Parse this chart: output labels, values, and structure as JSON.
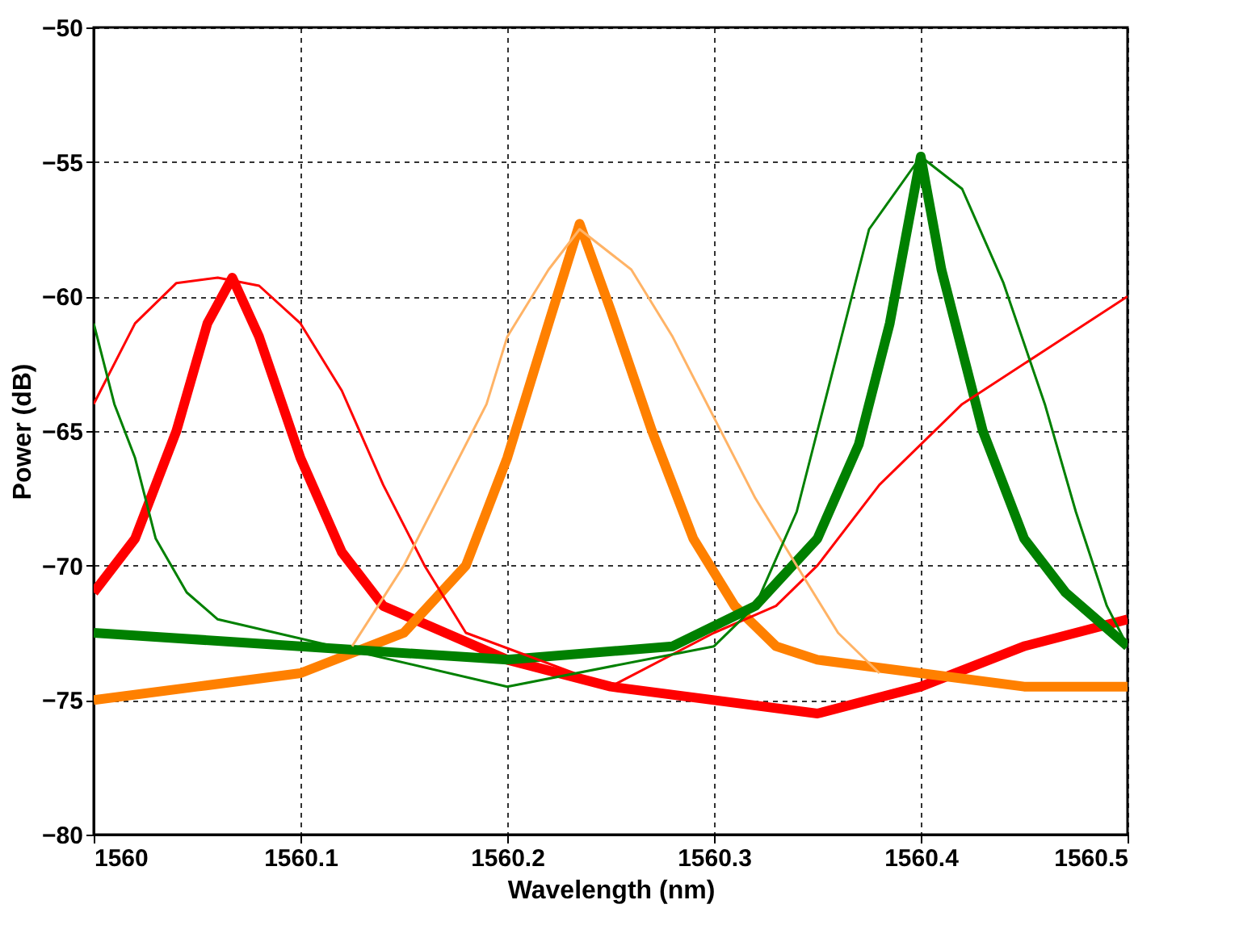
{
  "chart_data": {
    "type": "line",
    "xlabel": "Wavelength (nm)",
    "ylabel": "Power (dB)",
    "xlim": [
      1560,
      1560.5
    ],
    "xticks": [
      1560,
      1560.1,
      1560.2,
      1560.3,
      1560.4,
      1560.5
    ],
    "ylim": [
      -80,
      -50
    ],
    "yticks": [
      -80,
      -75,
      -70,
      -65,
      -60,
      -55,
      -50
    ],
    "grid": true,
    "line_style": "solid",
    "marker": "none",
    "series": [
      {
        "color": "#ff0000",
        "x": [
          1560,
          1560.02,
          1560.04,
          1560.055,
          1560.067,
          1560.08,
          1560.1,
          1560.12,
          1560.14,
          1560.2,
          1560.25,
          1560.3,
          1560.35,
          1560.4,
          1560.45,
          1560.5
        ],
        "values": [
          -71,
          -69,
          -65,
          -61,
          -59.3,
          -61.5,
          -66,
          -69.5,
          -71.5,
          -73.5,
          -74.5,
          -75,
          -75.5,
          -74.5,
          -73,
          -72
        ]
      },
      {
        "color": "#ff8000",
        "x": [
          1560,
          1560.05,
          1560.1,
          1560.15,
          1560.18,
          1560.2,
          1560.22,
          1560.235,
          1560.25,
          1560.27,
          1560.29,
          1560.31,
          1560.33,
          1560.35,
          1560.4,
          1560.45,
          1560.5
        ],
        "values": [
          -75,
          -74.5,
          -74,
          -72.5,
          -70,
          -66,
          -61,
          -57.3,
          -60.5,
          -65,
          -69,
          -71.5,
          -73,
          -73.5,
          -74,
          -74.5,
          -74.5
        ]
      },
      {
        "color": "#008000",
        "x": [
          1560,
          1560.1,
          1560.2,
          1560.28,
          1560.32,
          1560.35,
          1560.37,
          1560.385,
          1560.4,
          1560.41,
          1560.43,
          1560.45,
          1560.47,
          1560.5
        ],
        "values": [
          -72.5,
          -73,
          -73.5,
          -73,
          -71.5,
          -69,
          -65.5,
          -61,
          -54.8,
          -59,
          -65,
          -69,
          -71,
          -73
        ]
      },
      {
        "color": "#ff0000",
        "x": [
          1560,
          1560.02,
          1560.04,
          1560.06,
          1560.08,
          1560.1,
          1560.12,
          1560.14,
          1560.16,
          1560.18,
          1560.25,
          1560.3,
          1560.33,
          1560.35,
          1560.38,
          1560.42,
          1560.46,
          1560.5
        ],
        "values": [
          -64,
          -61,
          -59.5,
          -59.3,
          -59.6,
          -61,
          -63.5,
          -67,
          -70,
          -72.5,
          -74.5,
          -72.5,
          -71.5,
          -70,
          -67,
          -64,
          -62,
          -60
        ]
      },
      {
        "color": "#ffb366",
        "x": [
          1560.125,
          1560.15,
          1560.17,
          1560.19,
          1560.2,
          1560.22,
          1560.235,
          1560.26,
          1560.28,
          1560.3,
          1560.32,
          1560.34,
          1560.36,
          1560.38
        ],
        "values": [
          -73,
          -70,
          -67,
          -64,
          -61.5,
          -59,
          -57.5,
          -59,
          -61.5,
          -64.5,
          -67.5,
          -70,
          -72.5,
          -74
        ]
      },
      {
        "color": "#008000",
        "x": [
          1560,
          1560.01,
          1560.02,
          1560.03,
          1560.045,
          1560.06,
          1560.2,
          1560.3,
          1560.32,
          1560.34,
          1560.35,
          1560.36,
          1560.375,
          1560.4,
          1560.42,
          1560.44,
          1560.46,
          1560.475,
          1560.49,
          1560.5
        ],
        "values": [
          -61,
          -64,
          -66,
          -69,
          -71,
          -72,
          -74.5,
          -73,
          -71.5,
          -68,
          -65,
          -62,
          -57.5,
          -54.8,
          -56,
          -59.5,
          -64,
          -68,
          -71.5,
          -73
        ]
      }
    ]
  }
}
